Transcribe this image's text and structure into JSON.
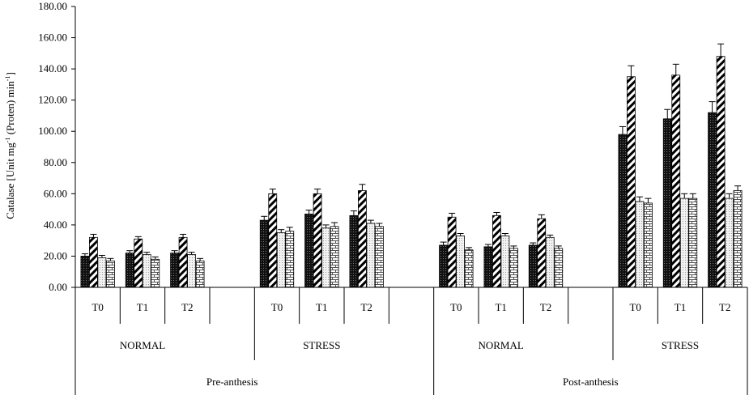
{
  "chart_data": {
    "type": "bar",
    "ylabel_parts": {
      "base": "Catalase [Unit mg",
      "sup1": "-1",
      "mid": " (Proten) min",
      "sup2": "-1",
      "end": "]"
    },
    "ylim": [
      0,
      180
    ],
    "yticks": [
      "0.00",
      "20.00",
      "40.00",
      "60.00",
      "80.00",
      "100.00",
      "120.00",
      "140.00",
      "160.00",
      "180.00"
    ],
    "grid": false,
    "legend": "none",
    "level1_categories": [
      "T0",
      "T1",
      "T2",
      "",
      "T0",
      "T1",
      "T2",
      "",
      "T0",
      "T1",
      "T2",
      "",
      "T0",
      "T1",
      "T2"
    ],
    "level2_categories": [
      "NORMAL",
      "STRESS",
      "NORMAL",
      "STRESS"
    ],
    "level3_categories": [
      "Pre-anthesis",
      "Post-anthesis"
    ],
    "series_patterns": [
      "dense-dots",
      "diagonal-hatch",
      "dotted-light",
      "brick"
    ],
    "groups": [
      {
        "values": [
          20,
          32,
          19,
          17
        ],
        "errors": [
          1.5,
          2,
          1.5,
          1.5
        ]
      },
      {
        "values": [
          22,
          31,
          21,
          18
        ],
        "errors": [
          1.5,
          1.5,
          1.5,
          1.5
        ]
      },
      {
        "values": [
          22,
          32,
          21,
          17
        ],
        "errors": [
          1.5,
          2,
          1.5,
          1.5
        ]
      },
      null,
      {
        "values": [
          43,
          60,
          35,
          36
        ],
        "errors": [
          2.5,
          3,
          2,
          2.5
        ]
      },
      {
        "values": [
          47,
          60,
          38,
          39
        ],
        "errors": [
          2.5,
          3,
          2,
          2.5
        ]
      },
      {
        "values": [
          46,
          62,
          41,
          39
        ],
        "errors": [
          3,
          4,
          2,
          2
        ]
      },
      null,
      {
        "values": [
          27,
          45,
          33,
          24
        ],
        "errors": [
          2,
          2.5,
          1.5,
          1.5
        ]
      },
      {
        "values": [
          26,
          46,
          33,
          25
        ],
        "errors": [
          1.5,
          2,
          1.5,
          1.5
        ]
      },
      {
        "values": [
          27,
          44,
          32,
          25
        ],
        "errors": [
          1.5,
          2.5,
          1.5,
          1.5
        ]
      },
      null,
      {
        "values": [
          98,
          135,
          55,
          54
        ],
        "errors": [
          5,
          7,
          3,
          3
        ]
      },
      {
        "values": [
          108,
          136,
          57,
          57
        ],
        "errors": [
          6,
          7,
          3,
          3
        ]
      },
      {
        "values": [
          112,
          148,
          57,
          62
        ],
        "errors": [
          7,
          8,
          3,
          3
        ]
      }
    ]
  }
}
